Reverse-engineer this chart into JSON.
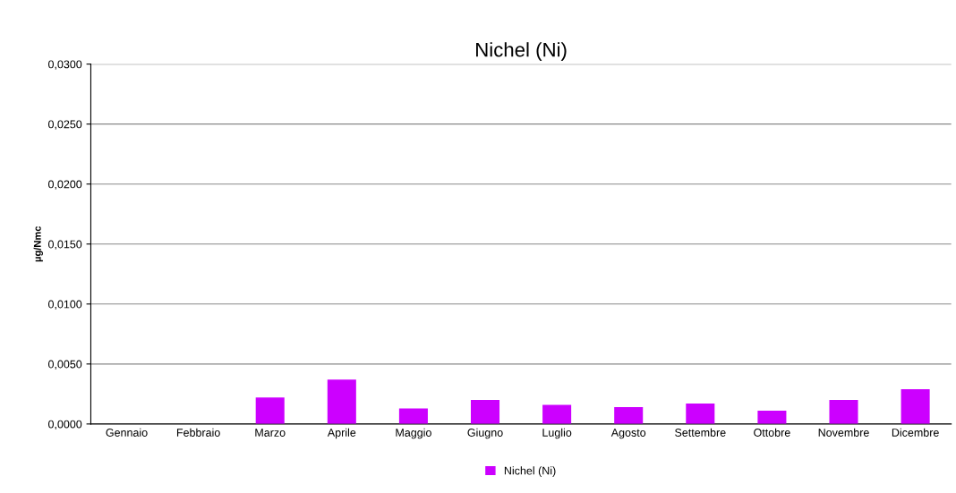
{
  "chart_data": {
    "type": "bar",
    "title": "Nichel (Ni)",
    "ylabel": "µg/Nmc",
    "categories": [
      "Gennaio",
      "Febbraio",
      "Marzo",
      "Aprile",
      "Maggio",
      "Giugno",
      "Luglio",
      "Agosto",
      "Settembre",
      "Ottobre",
      "Novembre",
      "Dicembre"
    ],
    "series": [
      {
        "name": "Nichel (Ni)",
        "color": "#cc00ff",
        "values": [
          null,
          null,
          0.0022,
          0.0037,
          0.0013,
          0.002,
          0.0016,
          0.0014,
          0.0017,
          0.0011,
          0.002,
          0.0029
        ]
      }
    ],
    "ylim": [
      0,
      0.03
    ],
    "yticks": [
      {
        "value": 0,
        "label": "0,0000"
      },
      {
        "value": 0.005,
        "label": "0,0050"
      },
      {
        "value": 0.01,
        "label": "0,0100"
      },
      {
        "value": 0.015,
        "label": "0,0150"
      },
      {
        "value": 0.02,
        "label": "0,0200"
      },
      {
        "value": 0.025,
        "label": "0,0250"
      },
      {
        "value": 0.03,
        "label": "0,0300"
      }
    ],
    "grid": "y",
    "legend": "bottom"
  }
}
